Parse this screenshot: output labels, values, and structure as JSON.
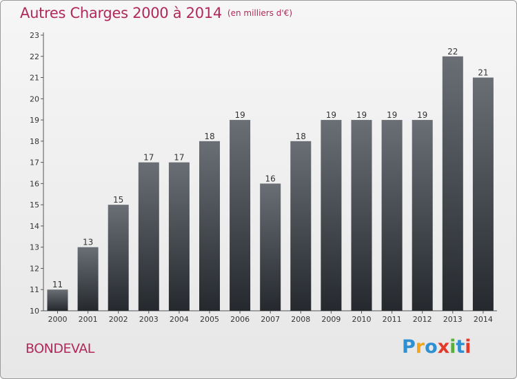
{
  "header": {
    "title": "Autres Charges 2000 à 2014",
    "subtitle": "(en milliers d'€)"
  },
  "footer": {
    "city": "BONDEVAL",
    "logo_text": "Proxiti"
  },
  "colors": {
    "title": "#b0295a",
    "bar_top": "#6a6f75",
    "bar_bottom": "#25292e",
    "logo_letters": [
      "#2e8fd2",
      "#f2a51e",
      "#2e8fd2",
      "#e23a2a",
      "#5aae3a",
      "#2e8fd2",
      "#e23a2a"
    ]
  },
  "chart_data": {
    "type": "bar",
    "title": "Autres Charges 2000 à 2014",
    "subtitle": "(en milliers d'€)",
    "categories": [
      "2000",
      "2001",
      "2002",
      "2003",
      "2004",
      "2005",
      "2006",
      "2007",
      "2008",
      "2009",
      "2010",
      "2011",
      "2012",
      "2013",
      "2014"
    ],
    "values": [
      11,
      13,
      15,
      17,
      17,
      18,
      19,
      16,
      18,
      19,
      19,
      19,
      19,
      22,
      21
    ],
    "ylim": [
      10,
      23
    ],
    "yticks": [
      10,
      11,
      12,
      13,
      14,
      15,
      16,
      17,
      18,
      19,
      20,
      21,
      22,
      23
    ],
    "xlabel": "",
    "ylabel": "",
    "grid": false,
    "data_labels": true
  }
}
